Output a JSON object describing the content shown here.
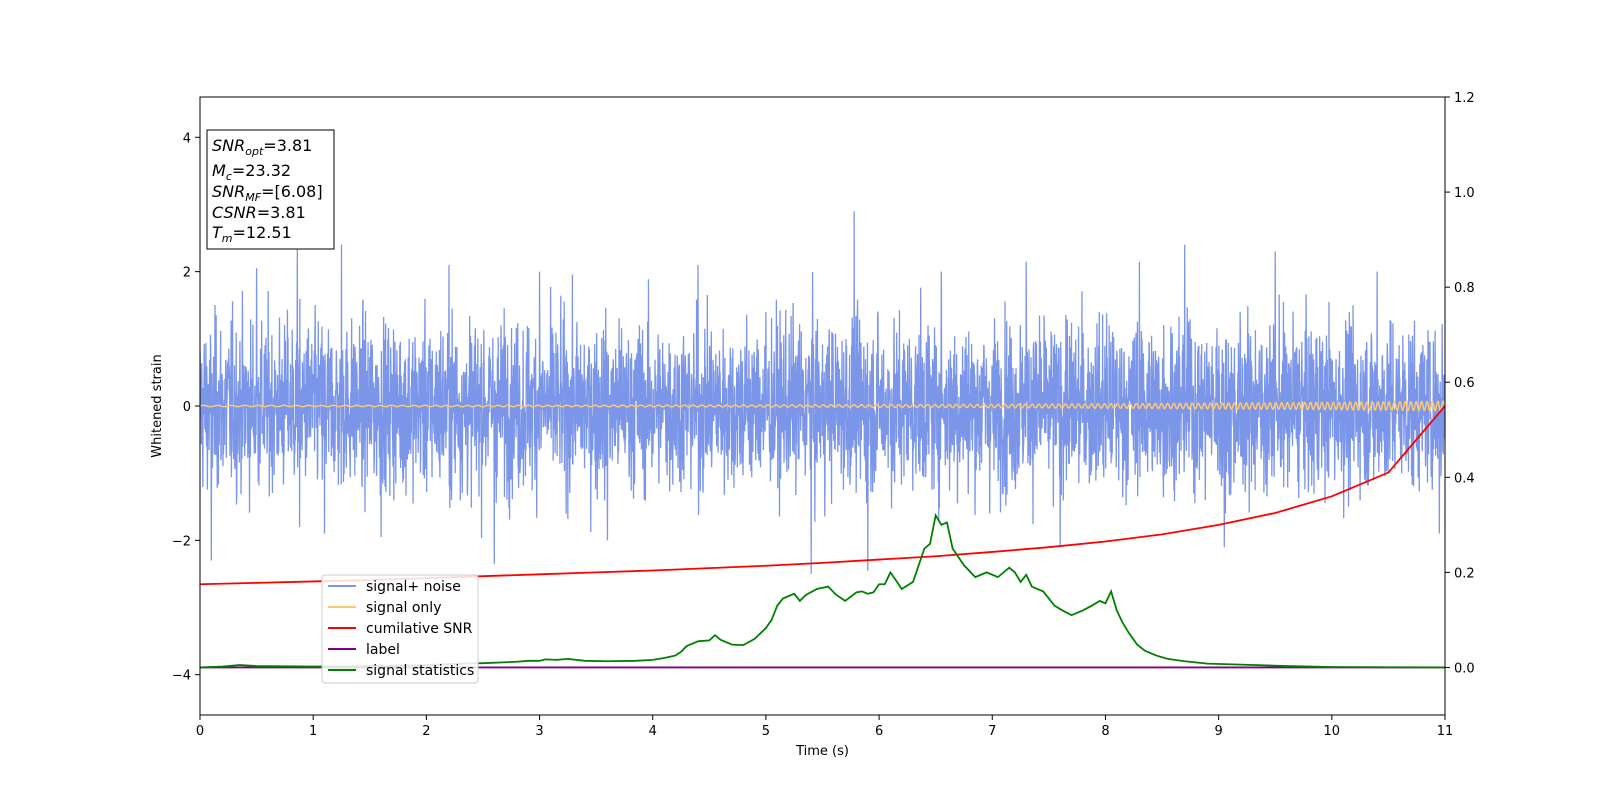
{
  "chart_data": {
    "type": "line",
    "xlabel": "Time (s)",
    "ylabel": "Whitened strain",
    "xlim": [
      0,
      11
    ],
    "ylim": [
      -4.6,
      4.6
    ],
    "y2lim": [
      -0.1,
      1.2
    ],
    "xticks": [
      0,
      1,
      2,
      3,
      4,
      5,
      6,
      7,
      8,
      9,
      10,
      11
    ],
    "yticks": [
      -4,
      -2,
      0,
      2,
      4
    ],
    "y2ticks": [
      0.0,
      0.2,
      0.4,
      0.6,
      0.8,
      1.0,
      1.2
    ],
    "grid": false,
    "legend_position": "lower-left",
    "annotation": {
      "snr_opt": "3.81",
      "mc": "23.32",
      "snr_mf": "[6.08]",
      "csnr": "3.81",
      "tm": "12.51"
    },
    "series": [
      {
        "name": "signal+ noise",
        "color": "#7b96e8",
        "axis": "left",
        "noise_std": 0.62,
        "peaks": [
          {
            "x": 0.1,
            "y": -2.3
          },
          {
            "x": 0.5,
            "y": 2.05
          },
          {
            "x": 0.86,
            "y": 2.35
          },
          {
            "x": 0.88,
            "y": -1.8
          },
          {
            "x": 1.1,
            "y": -1.9
          },
          {
            "x": 1.25,
            "y": 2.4
          },
          {
            "x": 1.6,
            "y": -1.95
          },
          {
            "x": 2.2,
            "y": 2.1
          },
          {
            "x": 2.6,
            "y": -2.35
          },
          {
            "x": 3.0,
            "y": 2.0
          },
          {
            "x": 3.6,
            "y": -2.0
          },
          {
            "x": 4.4,
            "y": 2.1
          },
          {
            "x": 5.4,
            "y": -2.5
          },
          {
            "x": 5.78,
            "y": 2.9
          },
          {
            "x": 5.9,
            "y": -2.45
          },
          {
            "x": 6.55,
            "y": 2.0
          },
          {
            "x": 7.3,
            "y": 2.15
          },
          {
            "x": 7.6,
            "y": -2.1
          },
          {
            "x": 8.3,
            "y": 2.15
          },
          {
            "x": 8.7,
            "y": 2.4
          },
          {
            "x": 9.05,
            "y": -2.1
          },
          {
            "x": 9.5,
            "y": 2.3
          },
          {
            "x": 10.4,
            "y": 2.0
          },
          {
            "x": 10.95,
            "y": -1.9
          }
        ]
      },
      {
        "name": "signal only",
        "color": "#ffc870",
        "axis": "left",
        "amplitude_start": 0.01,
        "amplitude_end": 0.07
      },
      {
        "name": "cumilative SNR",
        "color": "#ff0000",
        "axis": "right",
        "x": [
          0,
          0.5,
          1,
          1.5,
          2,
          2.5,
          3,
          3.5,
          4,
          4.5,
          5,
          5.5,
          6,
          6.5,
          7,
          7.5,
          8,
          8.5,
          9,
          9.5,
          10,
          10.5,
          11
        ],
        "y": [
          0.175,
          0.178,
          0.181,
          0.184,
          0.188,
          0.192,
          0.196,
          0.2,
          0.204,
          0.209,
          0.214,
          0.22,
          0.227,
          0.234,
          0.243,
          0.253,
          0.265,
          0.28,
          0.3,
          0.325,
          0.36,
          0.41,
          0.55
        ]
      },
      {
        "name": "label",
        "color": "#800080",
        "axis": "right",
        "x": [
          0,
          11
        ],
        "y": [
          0,
          0
        ]
      },
      {
        "name": "signal statistics",
        "color": "#008000",
        "axis": "right",
        "x": [
          0,
          0.2,
          0.35,
          0.5,
          1.0,
          1.5,
          2.0,
          2.3,
          2.5,
          2.7,
          2.8,
          2.9,
          3.0,
          3.05,
          3.15,
          3.25,
          3.4,
          3.6,
          3.85,
          4.0,
          4.1,
          4.2,
          4.25,
          4.3,
          4.35,
          4.4,
          4.5,
          4.55,
          4.6,
          4.7,
          4.8,
          4.9,
          5.0,
          5.05,
          5.1,
          5.15,
          5.25,
          5.3,
          5.35,
          5.45,
          5.55,
          5.62,
          5.7,
          5.8,
          5.85,
          5.9,
          5.95,
          6.0,
          6.05,
          6.1,
          6.15,
          6.2,
          6.3,
          6.4,
          6.45,
          6.5,
          6.55,
          6.6,
          6.65,
          6.75,
          6.85,
          6.95,
          7.05,
          7.15,
          7.2,
          7.25,
          7.3,
          7.35,
          7.45,
          7.55,
          7.62,
          7.7,
          7.8,
          7.88,
          7.95,
          8.0,
          8.05,
          8.1,
          8.15,
          8.2,
          8.28,
          8.35,
          8.45,
          8.55,
          8.7,
          8.9,
          9.2,
          9.6,
          10,
          11
        ],
        "y": [
          0,
          0.002,
          0.005,
          0.003,
          0.002,
          0.003,
          0.005,
          0.008,
          0.009,
          0.011,
          0.012,
          0.014,
          0.014,
          0.017,
          0.016,
          0.018,
          0.014,
          0.013,
          0.014,
          0.016,
          0.02,
          0.025,
          0.033,
          0.045,
          0.05,
          0.055,
          0.057,
          0.068,
          0.058,
          0.048,
          0.047,
          0.06,
          0.083,
          0.1,
          0.13,
          0.145,
          0.155,
          0.14,
          0.152,
          0.165,
          0.17,
          0.153,
          0.14,
          0.158,
          0.16,
          0.155,
          0.158,
          0.175,
          0.175,
          0.2,
          0.183,
          0.165,
          0.18,
          0.25,
          0.26,
          0.32,
          0.3,
          0.305,
          0.25,
          0.215,
          0.19,
          0.2,
          0.19,
          0.21,
          0.2,
          0.18,
          0.195,
          0.17,
          0.16,
          0.13,
          0.12,
          0.11,
          0.12,
          0.13,
          0.14,
          0.135,
          0.16,
          0.12,
          0.095,
          0.075,
          0.048,
          0.035,
          0.025,
          0.018,
          0.013,
          0.008,
          0.006,
          0.003,
          0.001,
          0
        ]
      }
    ]
  }
}
